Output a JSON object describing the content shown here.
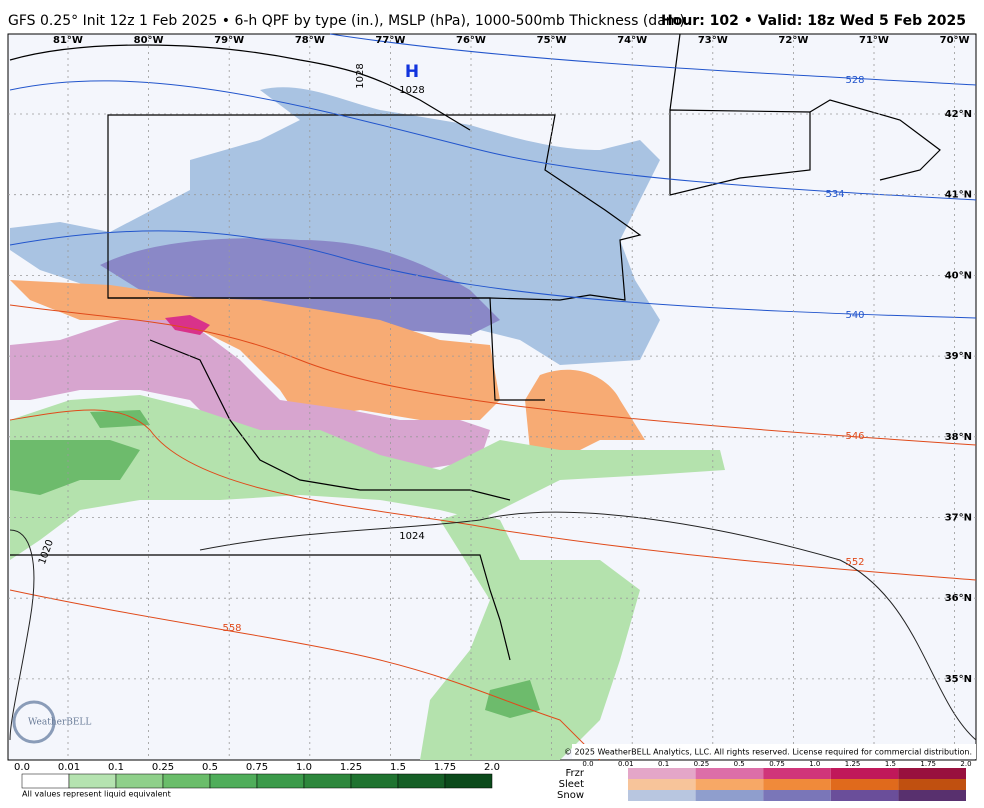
{
  "header": {
    "title": "GFS 0.25° Init 12z 1 Feb 2025 • 6-h QPF by type (in.), MSLP (hPa), 1000-500mb Thickness (dam)",
    "valid": "Hour: 102 • Valid: 18z Wed 5 Feb 2025"
  },
  "map": {
    "longitudes": [
      "81°W",
      "80°W",
      "79°W",
      "78°W",
      "77°W",
      "76°W",
      "75°W",
      "74°W",
      "73°W",
      "72°W",
      "71°W",
      "70°W"
    ],
    "latitudes": [
      "42°N",
      "41°N",
      "40°N",
      "39°N",
      "38°N",
      "37°N",
      "36°N",
      "35°N"
    ],
    "thickness_labels": [
      "528",
      "534",
      "540",
      "546",
      "552",
      "558"
    ],
    "pressure_labels": [
      "1028",
      "1028",
      "1024",
      "1020"
    ],
    "high": "H",
    "watermark": "WeatherBELL",
    "copyright": "© 2025 WeatherBELL Analytics, LLC. All rights reserved. License required for commercial distribution."
  },
  "legend": {
    "rain_labels": [
      "0.0",
      "0.01",
      "0.1",
      "0.25",
      "0.5",
      "0.75",
      "1.0",
      "1.25",
      "1.5",
      "1.75",
      "2.0"
    ],
    "note": "All values represent liquid equivalent",
    "type_labels": [
      "Frzr",
      "Sleet",
      "Snow"
    ],
    "type_scale": [
      "0.0",
      "0.01",
      "0.1",
      "0.25",
      "0.5",
      "0.75",
      "1.0",
      "1.25",
      "1.5",
      "1.75",
      "2.0"
    ]
  }
}
